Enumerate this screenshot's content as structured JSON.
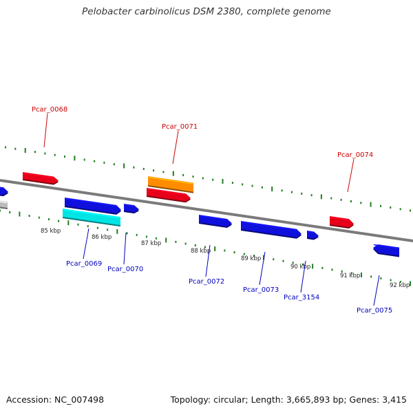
{
  "title": "Pelobacter carbinolicus DSM 2380, complete genome",
  "footer": {
    "accession": "Accession: NC_007498",
    "summary": "Topology: circular; Length: 3,665,893 bp; Genes: 3,415"
  },
  "colors": {
    "backbone": "#7a7a7a",
    "tick": "#1e7d1e",
    "red": "#e8001a",
    "blue": "#1010dd",
    "cyan": "#00e4e4",
    "orange": "#ff8c00",
    "grey": "#bcbcbc",
    "label_red": "#cc0000",
    "label_blue": "#0000bb"
  },
  "scale_labels": [
    "85 kbp",
    "86 kbp",
    "87 kbp",
    "88 kbp",
    "89 kbp",
    "90 kbp",
    "91 kbp",
    "92 kbp"
  ],
  "gene_labels": [
    {
      "text": "Pcar_0068",
      "color": "red"
    },
    {
      "text": "Pcar_0071",
      "color": "red"
    },
    {
      "text": "Pcar_0074",
      "color": "red"
    },
    {
      "text": "Pcar_0069",
      "color": "blue"
    },
    {
      "text": "Pcar_0070",
      "color": "blue"
    },
    {
      "text": "Pcar_0072",
      "color": "blue"
    },
    {
      "text": "Pcar_0073",
      "color": "blue"
    },
    {
      "text": "Pcar_3154",
      "color": "blue"
    },
    {
      "text": "Pcar_0075",
      "color": "blue"
    }
  ]
}
